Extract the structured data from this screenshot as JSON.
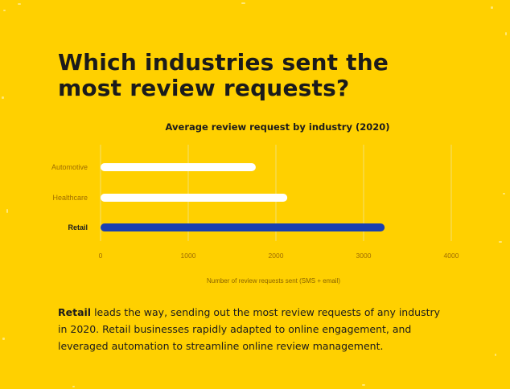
{
  "headline": "Which industries sent the most review requests?",
  "description": {
    "lead": "Retail",
    "rest": " leads the way, sending out the most review requests of any industry in 2020. Retail businesses rapidly adapted to online engagement, and leveraged automation to streamline online review management."
  },
  "colors": {
    "background": "#ffd000",
    "bar_default": "#ffffff",
    "bar_highlight": "#1a3fb0",
    "text": "#1b1b1b"
  },
  "chart_data": {
    "type": "bar",
    "orientation": "horizontal",
    "title": "Average review request by industry (2020)",
    "xlabel": "Number of review requests sent (SMS + email)",
    "ylabel": "",
    "categories": [
      "Automotive",
      "Healthcare",
      "Retail"
    ],
    "values": [
      1770,
      2130,
      3240
    ],
    "highlight": "Retail",
    "xlim": [
      0,
      4000
    ],
    "xticks": [
      0,
      1000,
      2000,
      3000,
      4000
    ],
    "grid": true
  }
}
